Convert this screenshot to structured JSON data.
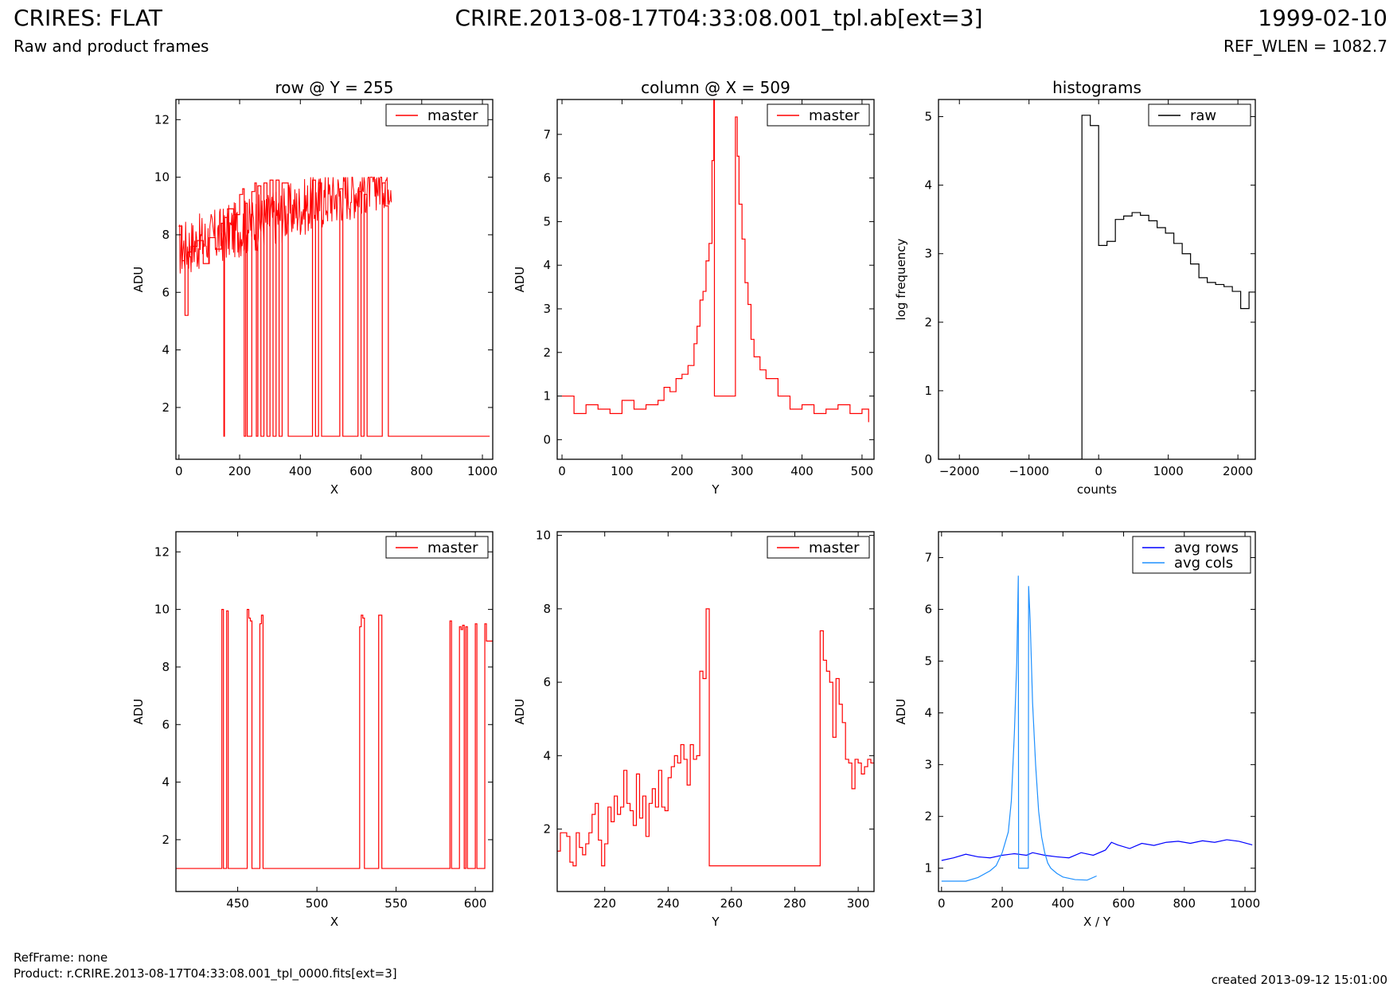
{
  "header": {
    "title_left": "CRIRES: FLAT",
    "title_center": "CRIRE.2013-08-17T04:33:08.001_tpl.ab[ext=3]",
    "title_right": "1999-02-10",
    "subtitle_left": "Raw and product frames",
    "subtitle_right": "REF_WLEN = 1082.7"
  },
  "footer": {
    "refframe": "RefFrame: none",
    "product": "Product: r.CRIRE.2013-08-17T04:33:08.001_tpl_0000.fits[ext=3]",
    "created": "created 2013-09-12 15:01:00"
  },
  "colors": {
    "master": "#ff0000",
    "raw": "#000000",
    "avg_rows": "#0000ff",
    "avg_cols": "#1e90ff"
  },
  "chart_data": [
    {
      "id": "row",
      "type": "line",
      "title": "row @ Y = 255",
      "xlabel": "X",
      "ylabel": "ADU",
      "xlim": [
        -10,
        1034
      ],
      "ylim": [
        0.2,
        12.7
      ],
      "xticks": [
        0,
        200,
        400,
        600,
        800,
        1000
      ],
      "yticks": [
        2,
        4,
        6,
        8,
        10,
        12
      ],
      "legend": {
        "placement": "top-right",
        "entries": [
          {
            "label": "master",
            "color": "#ff0000"
          }
        ]
      },
      "series": [
        {
          "name": "master",
          "color": "#ff0000",
          "style": "step",
          "noise": {
            "x_range": [
              0,
              700
            ],
            "low_start": 6.5,
            "low_end": 9.0,
            "amplitude": 2.0,
            "floor": 1.0
          },
          "x": [
            0,
            10,
            20,
            30,
            40,
            60,
            80,
            100,
            120,
            140,
            145,
            148,
            150,
            160,
            180,
            200,
            210,
            215,
            220,
            225,
            240,
            250,
            255,
            260,
            270,
            280,
            290,
            300,
            310,
            320,
            330,
            340,
            360,
            380,
            400,
            420,
            440,
            450,
            460,
            470,
            500,
            520,
            530,
            540,
            550,
            580,
            590,
            600,
            610,
            620,
            640,
            660,
            670,
            680,
            690,
            700,
            800,
            900,
            1024
          ],
          "y": [
            8.3,
            7.1,
            5.2,
            7.4,
            7.6,
            7.8,
            7.0,
            7.9,
            7.5,
            8.4,
            8.1,
            1.0,
            8.6,
            8.9,
            8.7,
            9.4,
            9.6,
            1.0,
            9.1,
            1.0,
            9.5,
            9.8,
            1.0,
            9.7,
            1.0,
            9.8,
            1.0,
            9.9,
            1.0,
            9.9,
            1.0,
            9.8,
            1.0,
            1.0,
            1.0,
            1.0,
            9.9,
            1.0,
            9.8,
            1.0,
            1.0,
            1.0,
            9.6,
            1.0,
            1.0,
            1.0,
            9.5,
            1.0,
            9.4,
            1.0,
            1.0,
            1.0,
            9.8,
            9.0,
            1.0,
            1.0,
            1.0,
            1.0,
            1.0
          ]
        }
      ]
    },
    {
      "id": "column",
      "type": "line",
      "title": "column @ X = 509",
      "xlabel": "Y",
      "ylabel": "ADU",
      "xlim": [
        -8,
        520
      ],
      "ylim": [
        -0.45,
        7.8
      ],
      "xticks": [
        0,
        100,
        200,
        300,
        400,
        500
      ],
      "yticks": [
        0,
        1,
        2,
        3,
        4,
        5,
        6,
        7
      ],
      "legend": {
        "placement": "top-right",
        "entries": [
          {
            "label": "master",
            "color": "#ff0000"
          }
        ]
      },
      "series": [
        {
          "name": "master",
          "color": "#ff0000",
          "style": "step",
          "x": [
            0,
            20,
            40,
            60,
            80,
            100,
            120,
            140,
            160,
            170,
            180,
            190,
            200,
            210,
            220,
            225,
            230,
            235,
            240,
            245,
            250,
            253,
            254,
            260,
            270,
            280,
            288,
            289,
            292,
            295,
            300,
            305,
            310,
            315,
            320,
            330,
            340,
            360,
            380,
            400,
            420,
            440,
            460,
            480,
            500,
            511
          ],
          "y": [
            1.0,
            0.6,
            0.8,
            0.7,
            0.6,
            0.9,
            0.7,
            0.8,
            0.9,
            1.2,
            1.1,
            1.4,
            1.5,
            1.7,
            2.2,
            2.6,
            3.2,
            3.4,
            4.1,
            4.5,
            6.4,
            7.8,
            1.0,
            1.0,
            1.0,
            1.0,
            1.0,
            7.4,
            6.5,
            5.4,
            4.6,
            3.6,
            3.1,
            2.3,
            1.9,
            1.6,
            1.4,
            1.0,
            0.7,
            0.8,
            0.6,
            0.7,
            0.8,
            0.6,
            0.7,
            0.4
          ]
        }
      ]
    },
    {
      "id": "histograms",
      "type": "line",
      "title": "histograms",
      "xlabel": "counts",
      "ylabel": "log frequency",
      "xlim": [
        -2300,
        2250
      ],
      "ylim": [
        0,
        5.25
      ],
      "xticks": [
        -2000,
        -1000,
        0,
        1000,
        2000
      ],
      "yticks": [
        0,
        1,
        2,
        3,
        4,
        5
      ],
      "legend": {
        "placement": "top-right",
        "entries": [
          {
            "label": "raw",
            "color": "#000000"
          }
        ]
      },
      "series": [
        {
          "name": "raw",
          "color": "#000000",
          "style": "step",
          "x": [
            -2300,
            -240,
            -240,
            -120,
            0,
            120,
            240,
            360,
            480,
            600,
            720,
            840,
            960,
            1080,
            1200,
            1320,
            1440,
            1560,
            1680,
            1800,
            1920,
            2040,
            2160,
            2250
          ],
          "y": [
            0,
            0,
            5.02,
            4.87,
            3.12,
            3.18,
            3.5,
            3.55,
            3.6,
            3.56,
            3.48,
            3.38,
            3.3,
            3.15,
            3.0,
            2.85,
            2.65,
            2.58,
            2.55,
            2.52,
            2.45,
            2.2,
            2.44,
            2.44
          ]
        }
      ]
    },
    {
      "id": "row-zoom",
      "type": "line",
      "title": "",
      "xlabel": "X",
      "ylabel": "ADU",
      "xlim": [
        411,
        611
      ],
      "ylim": [
        0.2,
        12.7
      ],
      "xticks": [
        450,
        500,
        550,
        600
      ],
      "yticks": [
        2,
        4,
        6,
        8,
        10,
        12
      ],
      "legend": {
        "placement": "top-right",
        "entries": [
          {
            "label": "master",
            "color": "#ff0000"
          }
        ]
      },
      "series": [
        {
          "name": "master",
          "color": "#ff0000",
          "style": "step",
          "x": [
            411,
            440,
            441,
            442,
            443,
            444,
            445,
            456,
            457,
            458,
            459,
            460,
            464,
            465,
            466,
            467,
            527,
            528,
            529,
            530,
            531,
            539,
            540,
            541,
            542,
            584,
            585,
            586,
            590,
            591,
            592,
            593,
            594,
            595,
            596,
            600,
            601,
            602,
            606,
            607,
            608,
            611
          ],
          "y": [
            1.0,
            10.0,
            1.0,
            1.0,
            9.95,
            1.0,
            1.0,
            10.0,
            9.7,
            9.6,
            1.0,
            1.0,
            9.5,
            9.8,
            1.0,
            1.0,
            9.4,
            9.8,
            9.7,
            1.0,
            1.0,
            9.8,
            9.8,
            1.0,
            1.0,
            9.6,
            1.0,
            1.0,
            9.4,
            9.3,
            9.45,
            1.0,
            9.4,
            1.0,
            1.0,
            9.5,
            1.0,
            1.0,
            9.5,
            8.9,
            8.9,
            8.9
          ]
        }
      ]
    },
    {
      "id": "column-zoom",
      "type": "line",
      "title": "",
      "xlabel": "Y",
      "ylabel": "ADU",
      "xlim": [
        205,
        305
      ],
      "ylim": [
        0.3,
        10.1
      ],
      "xticks": [
        220,
        240,
        260,
        280,
        300
      ],
      "yticks": [
        2,
        4,
        6,
        8,
        10
      ],
      "legend": {
        "placement": "top-right",
        "entries": [
          {
            "label": "master",
            "color": "#ff0000"
          }
        ]
      },
      "series": [
        {
          "name": "master",
          "color": "#ff0000",
          "style": "step",
          "x": [
            205,
            206,
            208,
            209,
            210,
            211,
            212,
            213,
            214,
            215,
            216,
            217,
            218,
            219,
            220,
            221,
            222,
            223,
            224,
            225,
            226,
            227,
            228,
            229,
            230,
            231,
            232,
            233,
            234,
            235,
            236,
            237,
            238,
            239,
            240,
            241,
            242,
            243,
            244,
            245,
            246,
            247,
            248,
            249,
            250,
            251,
            252,
            253,
            254,
            260,
            270,
            280,
            288,
            289,
            290,
            291,
            292,
            293,
            294,
            295,
            296,
            297,
            298,
            299,
            300,
            301,
            302,
            303,
            304,
            305
          ],
          "y": [
            1.4,
            1.9,
            1.8,
            1.1,
            1.0,
            1.9,
            1.5,
            1.3,
            1.6,
            1.9,
            2.4,
            2.7,
            1.7,
            1.0,
            1.6,
            2.6,
            2.2,
            2.9,
            2.4,
            2.6,
            3.6,
            2.7,
            2.5,
            2.1,
            3.5,
            2.3,
            2.9,
            1.8,
            2.7,
            3.1,
            2.6,
            3.6,
            2.6,
            2.5,
            3.4,
            3.7,
            4.0,
            3.8,
            4.3,
            3.9,
            3.2,
            4.3,
            3.9,
            4.0,
            6.3,
            6.1,
            8.0,
            1.0,
            1.0,
            1.0,
            1.0,
            1.0,
            7.4,
            6.6,
            6.3,
            6.0,
            4.5,
            6.1,
            5.4,
            4.9,
            3.9,
            3.8,
            3.1,
            3.9,
            3.8,
            3.5,
            3.7,
            3.9,
            3.8,
            3.8
          ]
        }
      ]
    },
    {
      "id": "averages",
      "type": "line",
      "title": "",
      "xlabel": "X / Y",
      "ylabel": "ADU",
      "xlim": [
        -10,
        1034
      ],
      "ylim": [
        0.55,
        7.5
      ],
      "xticks": [
        0,
        200,
        400,
        600,
        800,
        1000
      ],
      "yticks": [
        1,
        2,
        3,
        4,
        5,
        6,
        7
      ],
      "legend": {
        "placement": "top-right",
        "entries": [
          {
            "label": "avg rows",
            "color": "#0000ff"
          },
          {
            "label": "avg cols",
            "color": "#1e90ff"
          }
        ]
      },
      "series": [
        {
          "name": "avg rows",
          "color": "#0000ff",
          "style": "line",
          "x": [
            0,
            40,
            80,
            120,
            160,
            200,
            240,
            280,
            300,
            340,
            380,
            420,
            460,
            500,
            540,
            560,
            580,
            620,
            660,
            700,
            740,
            780,
            820,
            860,
            900,
            940,
            980,
            1024
          ],
          "y": [
            1.15,
            1.2,
            1.27,
            1.22,
            1.2,
            1.25,
            1.28,
            1.25,
            1.3,
            1.25,
            1.22,
            1.2,
            1.3,
            1.25,
            1.35,
            1.5,
            1.45,
            1.38,
            1.48,
            1.44,
            1.5,
            1.52,
            1.48,
            1.53,
            1.5,
            1.55,
            1.52,
            1.45
          ]
        },
        {
          "name": "avg cols",
          "color": "#1e90ff",
          "style": "line",
          "x": [
            0,
            40,
            80,
            120,
            160,
            180,
            200,
            220,
            230,
            240,
            248,
            253,
            254,
            286,
            287,
            292,
            300,
            310,
            320,
            330,
            340,
            350,
            360,
            380,
            400,
            440,
            480,
            511
          ],
          "y": [
            0.75,
            0.75,
            0.75,
            0.82,
            0.95,
            1.05,
            1.3,
            1.7,
            2.3,
            3.6,
            5.0,
            6.65,
            1.0,
            1.0,
            6.45,
            5.8,
            4.2,
            3.0,
            2.1,
            1.6,
            1.3,
            1.1,
            1.0,
            0.9,
            0.83,
            0.78,
            0.77,
            0.85
          ]
        }
      ]
    }
  ]
}
